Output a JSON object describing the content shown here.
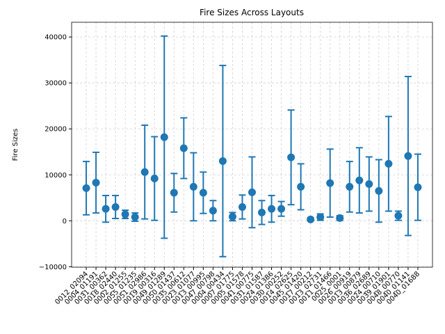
{
  "chart_data": {
    "type": "errorbar",
    "title": "Fire Sizes Across Layouts",
    "y_label": "Fire Sizes",
    "categories": [
      "0012_02094",
      "0004_01191",
      "0031_00362",
      "0018_02440",
      "0002_01255",
      "0055_01235",
      "0051_02986",
      "0019_00316",
      "0049_01289",
      "0050_01437",
      "0035_00612",
      "0023_01077",
      "0013_00995",
      "0047_00798",
      "0004_00434",
      "0007_01775",
      "0005_01578",
      "0041_00775",
      "0031_01587",
      "0024_01386",
      "0030_00252",
      "0014_02625",
      "0045_01420",
      "0017_00212",
      "0013_02731",
      "0011_01466",
      "0025_0001",
      "0026_00919",
      "0013_00879",
      "0036_02689",
      "0024_00710",
      "0039_01901",
      "0048_00770",
      "0040_01141",
      "0040_01688"
    ],
    "values": [
      7100,
      8300,
      2600,
      3000,
      1400,
      800,
      10600,
      9200,
      18200,
      6100,
      15800,
      7400,
      6100,
      2200,
      13000,
      900,
      3000,
      6200,
      1800,
      2600,
      2600,
      13800,
      7400,
      300,
      800,
      8200,
      600,
      7400,
      8800,
      8000,
      6500,
      12400,
      1100,
      14100,
      7300
    ],
    "errors": [
      5800,
      6600,
      2900,
      2500,
      900,
      900,
      10200,
      9100,
      22000,
      4200,
      6600,
      7400,
      4500,
      2200,
      20800,
      900,
      2600,
      7700,
      2600,
      2900,
      1600,
      10300,
      5000,
      300,
      700,
      7400,
      500,
      5500,
      7100,
      5900,
      6800,
      10300,
      1000,
      17300,
      7200
    ],
    "color": "#1f77b4",
    "ylim": [
      -10100,
      43200
    ],
    "yticks": [
      {
        "value": -10000,
        "label": "−10000"
      },
      0,
      10000,
      20000,
      30000,
      40000
    ],
    "grid": true
  }
}
